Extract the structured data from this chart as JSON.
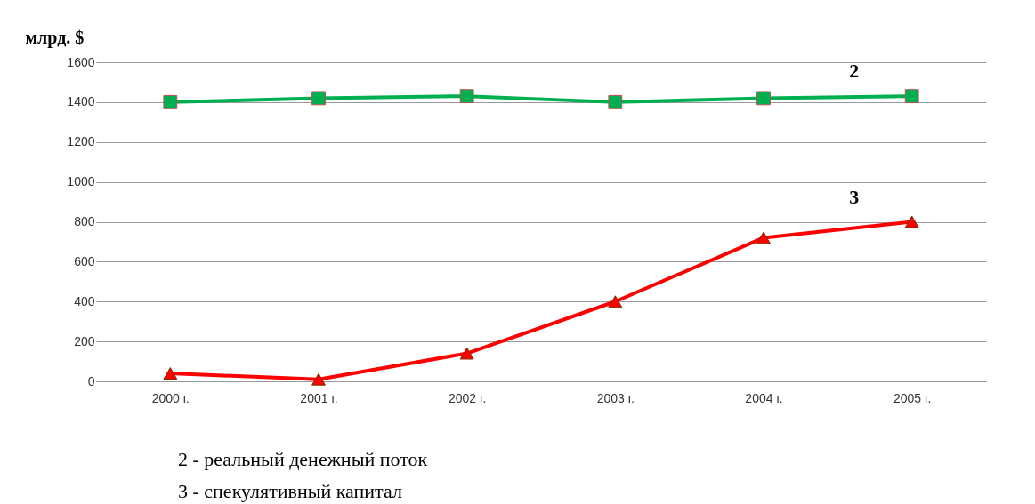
{
  "chart_data": {
    "type": "line",
    "ylabel": "млрд. $",
    "categories": [
      "2000 г.",
      "2001 г.",
      "2002 г.",
      "2003 г.",
      "2004 г.",
      "2005 г."
    ],
    "series": [
      {
        "name": "2",
        "color": "#00b050",
        "marker": "square",
        "values": [
          1400,
          1420,
          1430,
          1400,
          1420,
          1430
        ]
      },
      {
        "name": "3",
        "color": "#ff0000",
        "marker": "triangle",
        "values": [
          40,
          10,
          140,
          400,
          720,
          800
        ]
      }
    ],
    "ylim": [
      0,
      1600
    ],
    "yticks": [
      0,
      200,
      400,
      600,
      800,
      1000,
      1200,
      1400,
      1600
    ],
    "grid": "y",
    "annotations": [
      "2 - реальный денежный поток",
      "3 - спекулятивный капитал"
    ]
  }
}
